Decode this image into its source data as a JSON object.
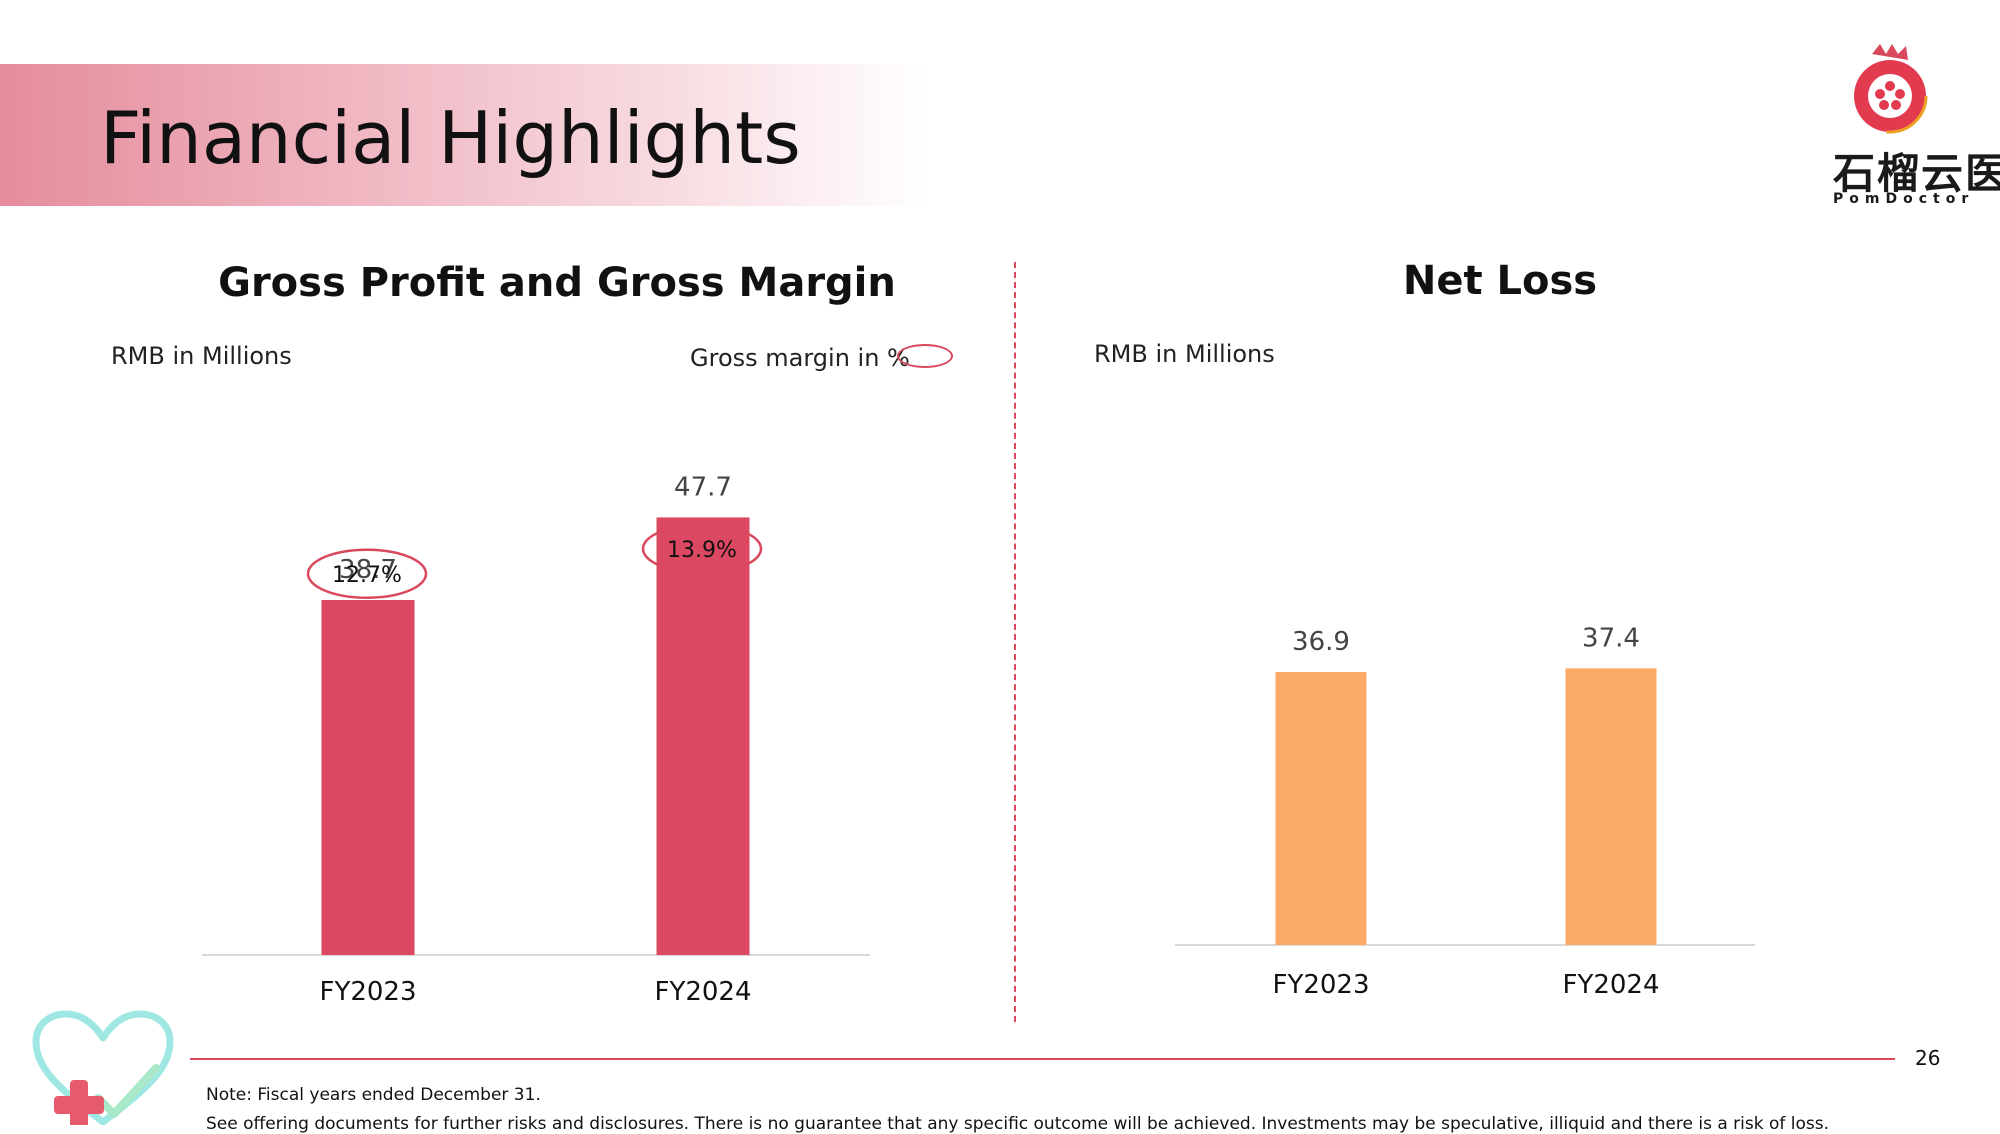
{
  "page": {
    "title": "Financial Highlights",
    "page_number": "26",
    "logo_cn": "石榴云医",
    "logo_en": "PomDoctor"
  },
  "left_section": {
    "title": "Gross Profit and Gross Margin",
    "unit_label": "RMB in Millions",
    "legend_label": "Gross margin in %"
  },
  "right_section": {
    "title": "Net Loss",
    "unit_label": "RMB in Millions"
  },
  "footer": {
    "note": "Note: Fiscal years ended December 31.",
    "disclaimer": "See offering documents for further risks and disclosures. There is no guarantee that any specific outcome will be achieved. Investments may be speculative, illiquid and there is a risk of loss."
  },
  "colors": {
    "accent": "#d9485c",
    "gross_profit_bar": "#dc4761",
    "net_loss_bar": "#fbaa65"
  },
  "chart_data": [
    {
      "type": "bar",
      "title": "Gross Profit and Gross Margin",
      "ylabel": "RMB in Millions",
      "categories": [
        "FY2023",
        "FY2024"
      ],
      "series": [
        {
          "name": "Gross Profit",
          "values": [
            38.7,
            47.7
          ]
        },
        {
          "name": "Gross margin in %",
          "values": [
            12.7,
            13.9
          ],
          "display": [
            "12.7%",
            "13.9%"
          ]
        }
      ],
      "ylim": [
        0,
        80
      ],
      "grid": false
    },
    {
      "type": "bar",
      "title": "Net Loss",
      "ylabel": "RMB in Millions",
      "categories": [
        "FY2023",
        "FY2024"
      ],
      "series": [
        {
          "name": "Net Loss",
          "values": [
            36.9,
            37.4
          ]
        }
      ],
      "ylim": [
        0,
        60
      ],
      "grid": false
    }
  ]
}
